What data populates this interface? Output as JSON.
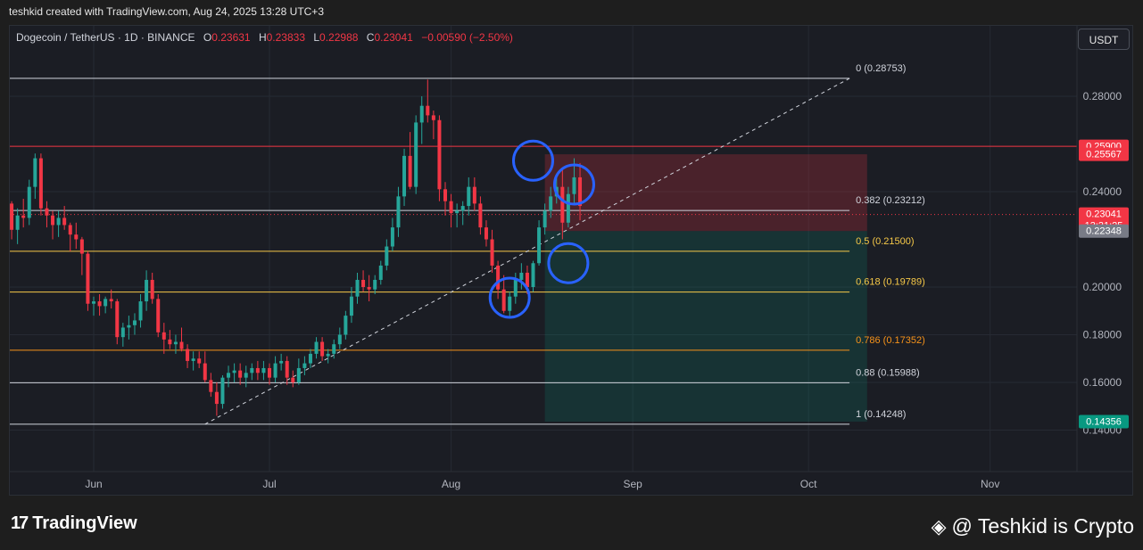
{
  "header": {
    "credit": "teshkid created with TradingView.com, Aug 24, 2025 13:28 UTC+3"
  },
  "legend": {
    "symbol": "Dogecoin / TetherUS · 1D · BINANCE",
    "o_label": "O",
    "o": "0.23631",
    "h_label": "H",
    "h": "0.23833",
    "l_label": "L",
    "l": "0.22988",
    "c_label": "C",
    "c": "0.23041",
    "change": "−0.00590 (−2.50%)"
  },
  "currency_button": "USDT",
  "footer": {
    "brand": "TradingView",
    "brand_mark": "17",
    "watermark": "@ Teshkid is Crypto"
  },
  "colors": {
    "up": "#26a69a",
    "down": "#f23645",
    "circle": "#2962ff",
    "fib_white": "#d1d4dc",
    "fib_yellow": "#f7c948",
    "fib_orange": "#f7931a",
    "resistance": "#f23645"
  },
  "chart_data": {
    "type": "candlestick",
    "y_axis": {
      "ticks": [
        "0.28000",
        "0.24000",
        "0.20000",
        "0.18000",
        "0.16000",
        "0.14000"
      ],
      "range": [
        0.118,
        0.305
      ]
    },
    "x_axis": {
      "ticks": [
        "Jun",
        "Jul",
        "Aug",
        "Sep",
        "Oct",
        "Nov"
      ],
      "tick_dates": [
        "2025-06-01",
        "2025-07-01",
        "2025-08-01",
        "2025-09-01",
        "2025-10-01",
        "2025-11-01"
      ]
    },
    "candles": [
      {
        "d": "2025-05-17",
        "o": 0.215,
        "h": 0.239,
        "l": 0.214,
        "c": 0.235
      },
      {
        "d": "2025-05-18",
        "o": 0.235,
        "h": 0.236,
        "l": 0.22,
        "c": 0.224
      },
      {
        "d": "2025-05-19",
        "o": 0.224,
        "h": 0.233,
        "l": 0.218,
        "c": 0.23
      },
      {
        "d": "2025-05-20",
        "o": 0.23,
        "h": 0.237,
        "l": 0.225,
        "c": 0.229
      },
      {
        "d": "2025-05-21",
        "o": 0.229,
        "h": 0.245,
        "l": 0.226,
        "c": 0.242
      },
      {
        "d": "2025-05-22",
        "o": 0.242,
        "h": 0.256,
        "l": 0.237,
        "c": 0.254
      },
      {
        "d": "2025-05-23",
        "o": 0.254,
        "h": 0.256,
        "l": 0.23,
        "c": 0.233
      },
      {
        "d": "2025-05-24",
        "o": 0.233,
        "h": 0.236,
        "l": 0.225,
        "c": 0.23
      },
      {
        "d": "2025-05-25",
        "o": 0.23,
        "h": 0.232,
        "l": 0.22,
        "c": 0.226
      },
      {
        "d": "2025-05-26",
        "o": 0.226,
        "h": 0.232,
        "l": 0.221,
        "c": 0.229
      },
      {
        "d": "2025-05-27",
        "o": 0.229,
        "h": 0.234,
        "l": 0.224,
        "c": 0.226
      },
      {
        "d": "2025-05-28",
        "o": 0.226,
        "h": 0.227,
        "l": 0.215,
        "c": 0.222
      },
      {
        "d": "2025-05-29",
        "o": 0.222,
        "h": 0.227,
        "l": 0.216,
        "c": 0.22
      },
      {
        "d": "2025-05-30",
        "o": 0.22,
        "h": 0.221,
        "l": 0.205,
        "c": 0.214
      },
      {
        "d": "2025-05-31",
        "o": 0.214,
        "h": 0.215,
        "l": 0.19,
        "c": 0.193
      },
      {
        "d": "2025-06-01",
        "o": 0.193,
        "h": 0.196,
        "l": 0.188,
        "c": 0.194
      },
      {
        "d": "2025-06-02",
        "o": 0.194,
        "h": 0.197,
        "l": 0.188,
        "c": 0.192
      },
      {
        "d": "2025-06-03",
        "o": 0.192,
        "h": 0.196,
        "l": 0.189,
        "c": 0.195
      },
      {
        "d": "2025-06-04",
        "o": 0.195,
        "h": 0.199,
        "l": 0.191,
        "c": 0.194
      },
      {
        "d": "2025-06-05",
        "o": 0.194,
        "h": 0.195,
        "l": 0.176,
        "c": 0.179
      },
      {
        "d": "2025-06-06",
        "o": 0.179,
        "h": 0.185,
        "l": 0.175,
        "c": 0.183
      },
      {
        "d": "2025-06-07",
        "o": 0.183,
        "h": 0.188,
        "l": 0.178,
        "c": 0.184
      },
      {
        "d": "2025-06-08",
        "o": 0.184,
        "h": 0.189,
        "l": 0.18,
        "c": 0.186
      },
      {
        "d": "2025-06-09",
        "o": 0.186,
        "h": 0.197,
        "l": 0.183,
        "c": 0.194
      },
      {
        "d": "2025-06-10",
        "o": 0.194,
        "h": 0.207,
        "l": 0.19,
        "c": 0.203
      },
      {
        "d": "2025-06-11",
        "o": 0.203,
        "h": 0.206,
        "l": 0.193,
        "c": 0.195
      },
      {
        "d": "2025-06-12",
        "o": 0.195,
        "h": 0.197,
        "l": 0.179,
        "c": 0.181
      },
      {
        "d": "2025-06-13",
        "o": 0.181,
        "h": 0.185,
        "l": 0.172,
        "c": 0.178
      },
      {
        "d": "2025-06-14",
        "o": 0.178,
        "h": 0.182,
        "l": 0.174,
        "c": 0.176
      },
      {
        "d": "2025-06-15",
        "o": 0.176,
        "h": 0.18,
        "l": 0.172,
        "c": 0.177
      },
      {
        "d": "2025-06-16",
        "o": 0.177,
        "h": 0.183,
        "l": 0.173,
        "c": 0.174
      },
      {
        "d": "2025-06-17",
        "o": 0.174,
        "h": 0.176,
        "l": 0.166,
        "c": 0.169
      },
      {
        "d": "2025-06-18",
        "o": 0.169,
        "h": 0.173,
        "l": 0.165,
        "c": 0.17
      },
      {
        "d": "2025-06-19",
        "o": 0.17,
        "h": 0.173,
        "l": 0.166,
        "c": 0.168
      },
      {
        "d": "2025-06-20",
        "o": 0.168,
        "h": 0.173,
        "l": 0.16,
        "c": 0.161
      },
      {
        "d": "2025-06-21",
        "o": 0.161,
        "h": 0.164,
        "l": 0.154,
        "c": 0.156
      },
      {
        "d": "2025-06-22",
        "o": 0.156,
        "h": 0.16,
        "l": 0.146,
        "c": 0.151
      },
      {
        "d": "2025-06-23",
        "o": 0.151,
        "h": 0.163,
        "l": 0.149,
        "c": 0.162
      },
      {
        "d": "2025-06-24",
        "o": 0.162,
        "h": 0.167,
        "l": 0.158,
        "c": 0.164
      },
      {
        "d": "2025-06-25",
        "o": 0.164,
        "h": 0.168,
        "l": 0.16,
        "c": 0.165
      },
      {
        "d": "2025-06-26",
        "o": 0.165,
        "h": 0.168,
        "l": 0.159,
        "c": 0.162
      },
      {
        "d": "2025-06-27",
        "o": 0.162,
        "h": 0.167,
        "l": 0.158,
        "c": 0.164
      },
      {
        "d": "2025-06-28",
        "o": 0.164,
        "h": 0.168,
        "l": 0.161,
        "c": 0.166
      },
      {
        "d": "2025-06-29",
        "o": 0.166,
        "h": 0.169,
        "l": 0.161,
        "c": 0.164
      },
      {
        "d": "2025-06-30",
        "o": 0.164,
        "h": 0.169,
        "l": 0.161,
        "c": 0.166
      },
      {
        "d": "2025-07-01",
        "o": 0.166,
        "h": 0.168,
        "l": 0.159,
        "c": 0.162
      },
      {
        "d": "2025-07-02",
        "o": 0.162,
        "h": 0.171,
        "l": 0.16,
        "c": 0.168
      },
      {
        "d": "2025-07-03",
        "o": 0.168,
        "h": 0.172,
        "l": 0.165,
        "c": 0.169
      },
      {
        "d": "2025-07-04",
        "o": 0.169,
        "h": 0.171,
        "l": 0.159,
        "c": 0.162
      },
      {
        "d": "2025-07-05",
        "o": 0.162,
        "h": 0.165,
        "l": 0.158,
        "c": 0.16
      },
      {
        "d": "2025-07-06",
        "o": 0.16,
        "h": 0.17,
        "l": 0.159,
        "c": 0.166
      },
      {
        "d": "2025-07-07",
        "o": 0.166,
        "h": 0.171,
        "l": 0.163,
        "c": 0.168
      },
      {
        "d": "2025-07-08",
        "o": 0.168,
        "h": 0.174,
        "l": 0.166,
        "c": 0.172
      },
      {
        "d": "2025-07-09",
        "o": 0.172,
        "h": 0.179,
        "l": 0.17,
        "c": 0.177
      },
      {
        "d": "2025-07-10",
        "o": 0.177,
        "h": 0.179,
        "l": 0.169,
        "c": 0.171
      },
      {
        "d": "2025-07-11",
        "o": 0.171,
        "h": 0.174,
        "l": 0.168,
        "c": 0.172
      },
      {
        "d": "2025-07-12",
        "o": 0.172,
        "h": 0.178,
        "l": 0.17,
        "c": 0.176
      },
      {
        "d": "2025-07-13",
        "o": 0.176,
        "h": 0.183,
        "l": 0.174,
        "c": 0.18
      },
      {
        "d": "2025-07-14",
        "o": 0.18,
        "h": 0.19,
        "l": 0.178,
        "c": 0.188
      },
      {
        "d": "2025-07-15",
        "o": 0.188,
        "h": 0.2,
        "l": 0.185,
        "c": 0.196
      },
      {
        "d": "2025-07-16",
        "o": 0.196,
        "h": 0.206,
        "l": 0.193,
        "c": 0.203
      },
      {
        "d": "2025-07-17",
        "o": 0.203,
        "h": 0.207,
        "l": 0.198,
        "c": 0.2
      },
      {
        "d": "2025-07-18",
        "o": 0.2,
        "h": 0.205,
        "l": 0.194,
        "c": 0.199
      },
      {
        "d": "2025-07-19",
        "o": 0.199,
        "h": 0.205,
        "l": 0.197,
        "c": 0.203
      },
      {
        "d": "2025-07-20",
        "o": 0.203,
        "h": 0.211,
        "l": 0.201,
        "c": 0.209
      },
      {
        "d": "2025-07-21",
        "o": 0.209,
        "h": 0.22,
        "l": 0.207,
        "c": 0.217
      },
      {
        "d": "2025-07-22",
        "o": 0.217,
        "h": 0.229,
        "l": 0.215,
        "c": 0.225
      },
      {
        "d": "2025-07-23",
        "o": 0.225,
        "h": 0.242,
        "l": 0.221,
        "c": 0.238
      },
      {
        "d": "2025-07-24",
        "o": 0.238,
        "h": 0.258,
        "l": 0.234,
        "c": 0.255
      },
      {
        "d": "2025-07-25",
        "o": 0.255,
        "h": 0.265,
        "l": 0.241,
        "c": 0.242
      },
      {
        "d": "2025-07-26",
        "o": 0.242,
        "h": 0.272,
        "l": 0.239,
        "c": 0.269
      },
      {
        "d": "2025-07-27",
        "o": 0.269,
        "h": 0.28,
        "l": 0.26,
        "c": 0.276
      },
      {
        "d": "2025-07-28",
        "o": 0.276,
        "h": 0.287,
        "l": 0.269,
        "c": 0.272
      },
      {
        "d": "2025-07-29",
        "o": 0.272,
        "h": 0.274,
        "l": 0.262,
        "c": 0.27
      },
      {
        "d": "2025-07-30",
        "o": 0.27,
        "h": 0.272,
        "l": 0.236,
        "c": 0.241
      },
      {
        "d": "2025-07-31",
        "o": 0.241,
        "h": 0.244,
        "l": 0.23,
        "c": 0.236
      },
      {
        "d": "2025-08-01",
        "o": 0.236,
        "h": 0.239,
        "l": 0.225,
        "c": 0.231
      },
      {
        "d": "2025-08-02",
        "o": 0.231,
        "h": 0.235,
        "l": 0.225,
        "c": 0.232
      },
      {
        "d": "2025-08-03",
        "o": 0.232,
        "h": 0.236,
        "l": 0.226,
        "c": 0.234
      },
      {
        "d": "2025-08-04",
        "o": 0.234,
        "h": 0.246,
        "l": 0.23,
        "c": 0.242
      },
      {
        "d": "2025-08-05",
        "o": 0.242,
        "h": 0.246,
        "l": 0.232,
        "c": 0.235
      },
      {
        "d": "2025-08-06",
        "o": 0.235,
        "h": 0.238,
        "l": 0.222,
        "c": 0.225
      },
      {
        "d": "2025-08-07",
        "o": 0.225,
        "h": 0.228,
        "l": 0.217,
        "c": 0.22
      },
      {
        "d": "2025-08-08",
        "o": 0.22,
        "h": 0.224,
        "l": 0.206,
        "c": 0.209
      },
      {
        "d": "2025-08-09",
        "o": 0.209,
        "h": 0.211,
        "l": 0.195,
        "c": 0.199
      },
      {
        "d": "2025-08-10",
        "o": 0.199,
        "h": 0.205,
        "l": 0.189,
        "c": 0.19
      },
      {
        "d": "2025-08-11",
        "o": 0.19,
        "h": 0.198,
        "l": 0.187,
        "c": 0.196
      },
      {
        "d": "2025-08-12",
        "o": 0.196,
        "h": 0.206,
        "l": 0.193,
        "c": 0.203
      },
      {
        "d": "2025-08-13",
        "o": 0.203,
        "h": 0.21,
        "l": 0.199,
        "c": 0.206
      },
      {
        "d": "2025-08-14",
        "o": 0.206,
        "h": 0.209,
        "l": 0.197,
        "c": 0.2
      },
      {
        "d": "2025-08-15",
        "o": 0.2,
        "h": 0.211,
        "l": 0.198,
        "c": 0.21
      },
      {
        "d": "2025-08-16",
        "o": 0.21,
        "h": 0.228,
        "l": 0.209,
        "c": 0.225
      },
      {
        "d": "2025-08-17",
        "o": 0.225,
        "h": 0.235,
        "l": 0.222,
        "c": 0.232
      },
      {
        "d": "2025-08-18",
        "o": 0.232,
        "h": 0.242,
        "l": 0.229,
        "c": 0.238
      },
      {
        "d": "2025-08-19",
        "o": 0.238,
        "h": 0.246,
        "l": 0.235,
        "c": 0.242
      },
      {
        "d": "2025-08-20",
        "o": 0.242,
        "h": 0.25,
        "l": 0.22,
        "c": 0.227
      },
      {
        "d": "2025-08-21",
        "o": 0.227,
        "h": 0.242,
        "l": 0.225,
        "c": 0.239
      },
      {
        "d": "2025-08-22",
        "o": 0.239,
        "h": 0.254,
        "l": 0.235,
        "c": 0.246
      },
      {
        "d": "2025-08-23",
        "o": 0.246,
        "h": 0.252,
        "l": 0.228,
        "c": 0.234
      }
    ],
    "price_labels": [
      {
        "value": 0.259,
        "text": "0.25900",
        "bg": "#f23645"
      },
      {
        "value": 0.25567,
        "text": "0.25567",
        "bg": "#f23645"
      },
      {
        "value": 0.23041,
        "text": "0.23041",
        "sub": "13:31:25",
        "bg": "#f23645"
      },
      {
        "value": 0.22348,
        "text": "0.22348",
        "bg": "#787b86"
      },
      {
        "value": 0.14356,
        "text": "0.14356",
        "bg": "#089981"
      }
    ],
    "resistance_line": 0.259,
    "fib_retracement": {
      "start_date": "2025-05-15",
      "end_date": "2025-10-08",
      "levels": [
        {
          "value": 0.28753,
          "label": "0 (0.28753)",
          "color": "#d1d4dc"
        },
        {
          "value": 0.23212,
          "label": "0.382 (0.23212)",
          "color": "#d1d4dc"
        },
        {
          "value": 0.215,
          "label": "0.5 (0.21500)",
          "color": "#f7c948"
        },
        {
          "value": 0.19789,
          "label": "0.618 (0.19789)",
          "color": "#f7c948"
        },
        {
          "value": 0.17352,
          "label": "0.786 (0.17352)",
          "color": "#f7931a"
        },
        {
          "value": 0.15988,
          "label": "0.88 (0.15988)",
          "color": "#d1d4dc"
        },
        {
          "value": 0.14248,
          "label": "1 (0.14248)",
          "color": "#d1d4dc"
        }
      ]
    },
    "trendline": {
      "from": {
        "d": "2025-06-20",
        "v": 0.1425
      },
      "to": {
        "d": "2025-10-08",
        "v": 0.2875
      }
    },
    "position_tool": {
      "start_date": "2025-08-17",
      "end_date": "2025-10-11",
      "entry": 0.22348,
      "stop": 0.25567,
      "target": 0.14356
    },
    "annotation_circles": [
      {
        "d": "2025-08-11",
        "v": 0.1955
      },
      {
        "d": "2025-08-15",
        "v": 0.253
      },
      {
        "d": "2025-08-21",
        "v": 0.21
      },
      {
        "d": "2025-08-22",
        "v": 0.243
      }
    ]
  }
}
